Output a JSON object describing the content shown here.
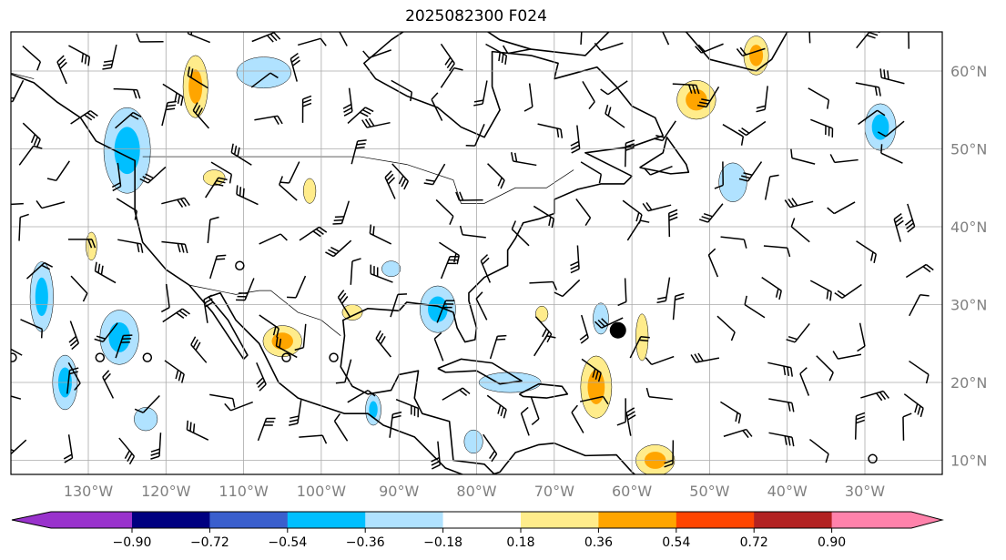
{
  "title": "2025082300 F024",
  "map": {
    "extent": {
      "lon": [
        -140,
        -20
      ],
      "lat": [
        8.1,
        65
      ]
    },
    "lon_ticks": [
      {
        "value": -130,
        "label": "130°W"
      },
      {
        "value": -120,
        "label": "120°W"
      },
      {
        "value": -110,
        "label": "110°W"
      },
      {
        "value": -100,
        "label": "100°W"
      },
      {
        "value": -90,
        "label": "90°W"
      },
      {
        "value": -80,
        "label": "80°W"
      },
      {
        "value": -70,
        "label": "70°W"
      },
      {
        "value": -60,
        "label": "60°W"
      },
      {
        "value": -50,
        "label": "50°W"
      },
      {
        "value": -40,
        "label": "40°W"
      },
      {
        "value": -30,
        "label": "30°W"
      }
    ],
    "lat_ticks": [
      {
        "value": 60,
        "label": "60°N"
      },
      {
        "value": 50,
        "label": "50°N"
      },
      {
        "value": 40,
        "label": "40°N"
      },
      {
        "value": 30,
        "label": "30°N"
      },
      {
        "value": 20,
        "label": "20°N"
      },
      {
        "value": 10,
        "label": "10°N"
      }
    ],
    "grid_color": "#aaaaaa",
    "anomaly_regions": [
      {
        "lon": -116.2,
        "lat": 58.0,
        "rlon": 1.6,
        "rlat": 4.0,
        "levels": [
          0.18,
          0.36
        ]
      },
      {
        "lon": -107.4,
        "lat": 59.8,
        "rlon": 3.5,
        "rlat": 2.0,
        "levels": [
          -0.18
        ]
      },
      {
        "lon": -125.0,
        "lat": 49.8,
        "rlon": 3.0,
        "rlat": 5.5,
        "levels": [
          -0.18,
          -0.36
        ]
      },
      {
        "lon": -136.0,
        "lat": 31.0,
        "rlon": 1.5,
        "rlat": 4.5,
        "levels": [
          -0.18,
          -0.36
        ]
      },
      {
        "lon": -126.0,
        "lat": 25.8,
        "rlon": 2.5,
        "rlat": 3.5,
        "levels": [
          -0.18,
          -0.36
        ]
      },
      {
        "lon": -133.0,
        "lat": 20.0,
        "rlon": 1.6,
        "rlat": 3.5,
        "levels": [
          -0.18,
          -0.36
        ]
      },
      {
        "lon": -105.0,
        "lat": 25.3,
        "rlon": 2.5,
        "rlat": 2.0,
        "levels": [
          0.18,
          0.36
        ]
      },
      {
        "lon": -85.0,
        "lat": 29.4,
        "rlon": 2.3,
        "rlat": 3.0,
        "levels": [
          -0.18,
          -0.36
        ]
      },
      {
        "lon": -64.6,
        "lat": 19.4,
        "rlon": 2.0,
        "rlat": 4.0,
        "levels": [
          0.18,
          0.36
        ]
      },
      {
        "lon": -58.7,
        "lat": 25.8,
        "rlon": 0.8,
        "rlat": 3.0,
        "levels": [
          0.18
        ]
      },
      {
        "lon": -75.7,
        "lat": 20.0,
        "rlon": 4.0,
        "rlat": 1.3,
        "levels": [
          -0.18
        ]
      },
      {
        "lon": -51.7,
        "lat": 56.3,
        "rlon": 2.5,
        "rlat": 2.5,
        "levels": [
          0.18,
          0.36
        ]
      },
      {
        "lon": -44.0,
        "lat": 62.0,
        "rlon": 1.6,
        "rlat": 2.5,
        "levels": [
          0.18,
          0.36
        ]
      },
      {
        "lon": -28.0,
        "lat": 52.8,
        "rlon": 2.0,
        "rlat": 3.0,
        "levels": [
          -0.18,
          -0.36
        ]
      },
      {
        "lon": -47.0,
        "lat": 45.7,
        "rlon": 1.8,
        "rlat": 2.5,
        "levels": [
          -0.18
        ]
      },
      {
        "lon": -57.0,
        "lat": 10.0,
        "rlon": 2.5,
        "rlat": 2.0,
        "levels": [
          0.18,
          0.36
        ]
      },
      {
        "lon": -113.8,
        "lat": 46.3,
        "rlon": 1.4,
        "rlat": 1.0,
        "levels": [
          0.18
        ]
      },
      {
        "lon": -101.5,
        "lat": 44.6,
        "rlon": 0.8,
        "rlat": 1.6,
        "levels": [
          0.18
        ]
      },
      {
        "lon": -129.6,
        "lat": 37.5,
        "rlon": 0.7,
        "rlat": 1.8,
        "levels": [
          0.18
        ]
      },
      {
        "lon": -93.3,
        "lat": 16.5,
        "rlon": 1.0,
        "rlat": 2.0,
        "levels": [
          -0.18,
          -0.36
        ]
      },
      {
        "lon": -122.6,
        "lat": 15.3,
        "rlon": 1.5,
        "rlat": 1.5,
        "levels": [
          -0.18
        ]
      },
      {
        "lon": -80.4,
        "lat": 12.4,
        "rlon": 1.2,
        "rlat": 1.5,
        "levels": [
          -0.18
        ]
      },
      {
        "lon": -64.0,
        "lat": 28.2,
        "rlon": 1.0,
        "rlat": 2.0,
        "levels": [
          -0.18
        ]
      },
      {
        "lon": -71.6,
        "lat": 28.8,
        "rlon": 0.8,
        "rlat": 1.0,
        "levels": [
          0.18
        ]
      },
      {
        "lon": -91.0,
        "lat": 34.6,
        "rlon": 1.2,
        "rlat": 1.0,
        "levels": [
          -0.18
        ]
      },
      {
        "lon": -96.0,
        "lat": 29.0,
        "rlon": 1.3,
        "rlat": 1.0,
        "levels": [
          0.18
        ]
      }
    ],
    "center_marker": {
      "lon": -61.8,
      "lat": 26.7
    },
    "station_markers": [
      {
        "lon": -110.5,
        "lat": 35.0
      },
      {
        "lon": -128.5,
        "lat": 23.2
      },
      {
        "lon": -122.4,
        "lat": 23.2
      },
      {
        "lon": -104.5,
        "lat": 23.2
      },
      {
        "lon": -98.4,
        "lat": 23.2
      },
      {
        "lon": -139.8,
        "lat": 23.2
      },
      {
        "lon": -29.0,
        "lat": 10.2
      }
    ]
  },
  "colorbar": {
    "levels": [
      -0.9,
      -0.72,
      -0.54,
      -0.36,
      -0.18,
      0.18,
      0.36,
      0.54,
      0.72,
      0.9
    ],
    "tick_labels": [
      "−0.90",
      "−0.72",
      "−0.54",
      "−0.36",
      "−0.18",
      "0.18",
      "0.36",
      "0.54",
      "0.72",
      "0.90"
    ],
    "colors": [
      "#9932cc",
      "#000080",
      "#3a5fcd",
      "#00bfff",
      "#b0e2ff",
      "#ffffff",
      "#ffec8b",
      "#ffa500",
      "#ff4500",
      "#b22222",
      "#ff82ab"
    ]
  }
}
